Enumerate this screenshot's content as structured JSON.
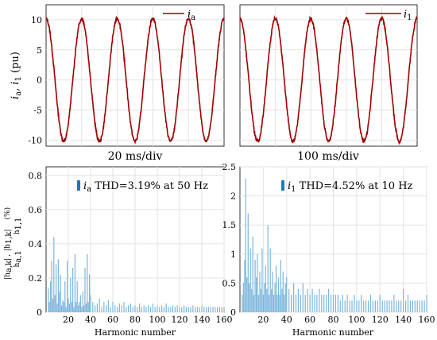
{
  "chart_data": [
    {
      "type": "line",
      "panel": "top-left",
      "ylabel": "i_a, i_1  (pu)",
      "xlabel": "20 ms/div",
      "ylim": [
        -11,
        12.5
      ],
      "yticks": [
        "10",
        "5",
        "0",
        "-5",
        "-10"
      ],
      "ytick_values": [
        10,
        5,
        0,
        -5,
        -10
      ],
      "grid": true,
      "legend": "top-right",
      "series": [
        {
          "name": "i_a",
          "color": "#a00000",
          "amplitude": 10.2,
          "cycles": 5,
          "phase": 0.25
        }
      ]
    },
    {
      "type": "line",
      "panel": "top-right",
      "xlabel": "100 ms/div",
      "ylim": [
        -11,
        12.5
      ],
      "grid": true,
      "legend": "top-right",
      "series": [
        {
          "name": "i_1",
          "color": "#a00000",
          "amplitude": 10.2,
          "cycles": 5,
          "phase": 0.25
        }
      ]
    },
    {
      "type": "bar",
      "panel": "bottom-left",
      "ylabel": "|h_{a,k}| / h_{a,1} , |h_{1,k}| / h_{1,1}   (%)",
      "xlabel": "Harmonic number",
      "xlim": [
        0,
        160
      ],
      "ylim": [
        0,
        0.85
      ],
      "xticks": [
        "20",
        "40",
        "60",
        "80",
        "100",
        "120",
        "140",
        "160"
      ],
      "xtick_values": [
        20,
        40,
        60,
        80,
        100,
        120,
        140,
        160
      ],
      "yticks": [
        "0",
        "0.2",
        "0.4",
        "0.6",
        "0.8"
      ],
      "ytick_values": [
        0,
        0.2,
        0.4,
        0.6,
        0.8
      ],
      "grid": true,
      "legend": "top-right",
      "legend_entry": {
        "symbol": "i_a",
        "text": "THD=3.19% at 50 Hz"
      },
      "bar_color": "#7fb6dc",
      "x": [
        2,
        3,
        4,
        5,
        6,
        7,
        8,
        9,
        10,
        11,
        12,
        13,
        14,
        15,
        16,
        17,
        18,
        19,
        20,
        21,
        22,
        23,
        24,
        25,
        26,
        27,
        28,
        29,
        30,
        31,
        32,
        33,
        34,
        35,
        36,
        37,
        38,
        39,
        40,
        42,
        44,
        46,
        48,
        50,
        52,
        54,
        56,
        58,
        60,
        62,
        64,
        66,
        68,
        70,
        72,
        74,
        76,
        78,
        80,
        82,
        84,
        86,
        88,
        90,
        92,
        94,
        96,
        98,
        100,
        102,
        104,
        106,
        108,
        110,
        112,
        114,
        116,
        118,
        120,
        122,
        124,
        126,
        128,
        130,
        132,
        134,
        136,
        138,
        140,
        142,
        144,
        146,
        148,
        150,
        152,
        154,
        156,
        158,
        160
      ],
      "values": [
        0.14,
        0.06,
        0.18,
        0.3,
        0.08,
        0.44,
        0.1,
        0.28,
        0.05,
        0.31,
        0.12,
        0.22,
        0.04,
        0.07,
        0.06,
        0.18,
        0.03,
        0.3,
        0.08,
        0.05,
        0.2,
        0.06,
        0.26,
        0.03,
        0.34,
        0.06,
        0.18,
        0.04,
        0.06,
        0.1,
        0.03,
        0.12,
        0.04,
        0.26,
        0.05,
        0.34,
        0.06,
        0.22,
        0.1,
        0.06,
        0.04,
        0.05,
        0.08,
        0.03,
        0.06,
        0.04,
        0.07,
        0.03,
        0.06,
        0.04,
        0.03,
        0.05,
        0.04,
        0.06,
        0.03,
        0.04,
        0.05,
        0.03,
        0.04,
        0.03,
        0.05,
        0.03,
        0.04,
        0.03,
        0.04,
        0.03,
        0.05,
        0.03,
        0.04,
        0.03,
        0.04,
        0.03,
        0.05,
        0.03,
        0.03,
        0.04,
        0.03,
        0.04,
        0.03,
        0.03,
        0.04,
        0.03,
        0.03,
        0.03,
        0.04,
        0.03,
        0.03,
        0.03,
        0.04,
        0.03,
        0.03,
        0.03,
        0.03,
        0.03,
        0.03,
        0.03,
        0.03,
        0.03,
        0.03
      ]
    },
    {
      "type": "bar",
      "panel": "bottom-right",
      "xlabel": "Harmonic number",
      "xlim": [
        0,
        160
      ],
      "ylim": [
        0,
        2.5
      ],
      "xticks": [
        "20",
        "40",
        "60",
        "80",
        "100",
        "120",
        "140",
        "160"
      ],
      "xtick_values": [
        20,
        40,
        60,
        80,
        100,
        120,
        140,
        160
      ],
      "yticks": [
        "0",
        "0.5",
        "1",
        "1.5",
        "2",
        "2.5"
      ],
      "ytick_values": [
        0,
        0.5,
        1,
        1.5,
        2,
        2.5
      ],
      "grid": true,
      "legend": "top-right",
      "legend_entry": {
        "symbol": "i_1",
        "text": "THD=4.52% at 10 Hz"
      },
      "bar_color": "#7fb6dc",
      "x": [
        2,
        3,
        4,
        5,
        6,
        7,
        8,
        9,
        10,
        11,
        12,
        13,
        14,
        15,
        16,
        17,
        18,
        19,
        20,
        21,
        22,
        23,
        24,
        25,
        26,
        27,
        28,
        29,
        30,
        31,
        32,
        33,
        34,
        35,
        36,
        37,
        38,
        39,
        40,
        42,
        44,
        46,
        48,
        50,
        52,
        54,
        56,
        58,
        60,
        62,
        64,
        66,
        68,
        70,
        72,
        74,
        76,
        78,
        80,
        82,
        84,
        86,
        88,
        90,
        92,
        94,
        96,
        98,
        100,
        102,
        104,
        106,
        108,
        110,
        112,
        114,
        116,
        118,
        120,
        122,
        124,
        126,
        128,
        130,
        132,
        134,
        136,
        138,
        140,
        142,
        144,
        146,
        148,
        150,
        152,
        154,
        156,
        158,
        160
      ],
      "values": [
        0.3,
        0.5,
        0.9,
        2.3,
        0.6,
        1.7,
        0.5,
        1.1,
        0.4,
        1.3,
        0.3,
        0.9,
        0.6,
        1.0,
        0.3,
        0.7,
        0.4,
        1.1,
        0.3,
        0.5,
        0.8,
        0.4,
        1.5,
        0.3,
        1.1,
        0.4,
        0.7,
        0.3,
        0.5,
        0.8,
        0.3,
        0.6,
        0.3,
        0.9,
        0.4,
        0.7,
        0.3,
        0.5,
        0.6,
        0.4,
        0.3,
        0.5,
        0.3,
        0.4,
        0.3,
        0.5,
        0.3,
        0.4,
        0.3,
        0.4,
        0.3,
        0.3,
        0.4,
        0.3,
        0.3,
        0.3,
        0.4,
        0.3,
        0.3,
        0.3,
        0.3,
        0.2,
        0.3,
        0.2,
        0.3,
        0.2,
        0.2,
        0.3,
        0.2,
        0.2,
        0.3,
        0.2,
        0.2,
        0.2,
        0.3,
        0.2,
        0.2,
        0.2,
        0.3,
        0.2,
        0.2,
        0.2,
        0.2,
        0.2,
        0.3,
        0.2,
        0.2,
        0.2,
        0.4,
        0.2,
        0.3,
        0.2,
        0.2,
        0.2,
        0.2,
        0.2,
        0.2,
        0.2,
        0.3
      ]
    }
  ]
}
